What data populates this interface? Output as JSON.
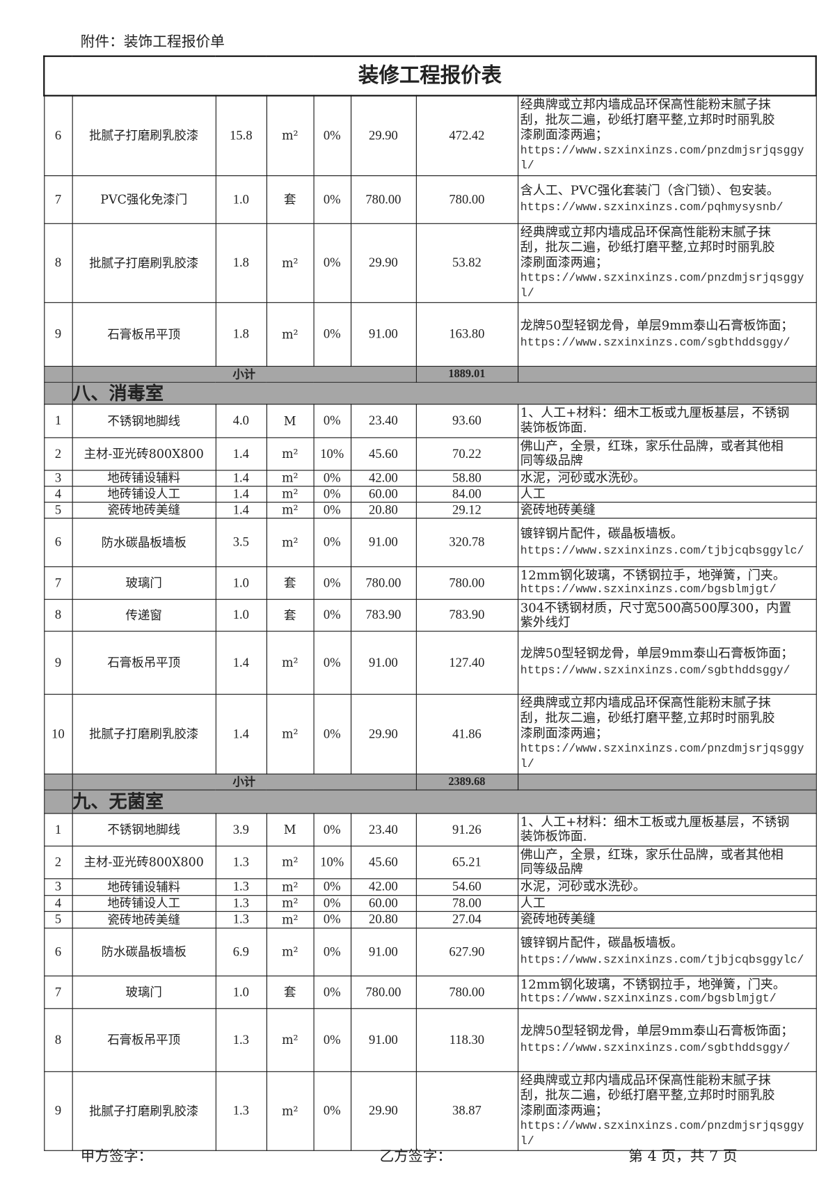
{
  "header": "附件：装饰工程报价单",
  "table_title": "装修工程报价表",
  "subtotal_label": "小计",
  "blocks": [
    {
      "section": "",
      "subtotal": "1889.01",
      "rows": [
        {
          "no": "6",
          "name": "批腻子打磨刷乳胶漆",
          "qty": "15.8",
          "unit": "m²",
          "loss": "0%",
          "price": "29.90",
          "total": "472.42",
          "desc": "经典牌或立邦内墙成品环保高性能粉末腻子抹\n刮，批灰二遍，砂纸打磨平整,立邦时时丽乳胶\n漆刷面漆两遍；",
          "url": "https://www.szxinxinzs.com/pnzdmjsrjqsggyl/"
        },
        {
          "no": "7",
          "name": "PVC强化免漆门",
          "qty": "1.0",
          "unit": "套",
          "loss": "0%",
          "price": "780.00",
          "total": "780.00",
          "desc": "含人工、PVC强化套装门（含门锁）、包安装。",
          "url": "https://www.szxinxinzs.com/pqhmysysnb/"
        },
        {
          "no": "8",
          "name": "批腻子打磨刷乳胶漆",
          "qty": "1.8",
          "unit": "m²",
          "loss": "0%",
          "price": "29.90",
          "total": "53.82",
          "desc": "经典牌或立邦内墙成品环保高性能粉末腻子抹\n刮，批灰二遍，砂纸打磨平整,立邦时时丽乳胶\n漆刷面漆两遍；",
          "url": "https://www.szxinxinzs.com/pnzdmjsrjqsggyl/"
        },
        {
          "no": "9",
          "name": "石膏板吊平顶",
          "qty": "1.8",
          "unit": "m²",
          "loss": "0%",
          "price": "91.00",
          "total": "163.80",
          "desc": "龙牌50型轻钢龙骨，单层9mm泰山石膏板饰面；",
          "url": "https://www.szxinxinzs.com/sgbthddsggy/"
        }
      ]
    },
    {
      "section": "八、消毒室",
      "subtotal": "2389.68",
      "rows": [
        {
          "no": "1",
          "name": "不锈钢地脚线",
          "qty": "4.0",
          "unit": "M",
          "loss": "0%",
          "price": "23.40",
          "total": "93.60",
          "desc": "1、人工+材料：细木工板或九厘板基层，不锈钢\n装饰板饰面.",
          "url": ""
        },
        {
          "no": "2",
          "name": "主材-亚光砖800X800",
          "qty": "1.4",
          "unit": "m²",
          "loss": "10%",
          "price": "45.60",
          "total": "70.22",
          "desc": "佛山产，全景，红珠，家乐仕品牌，或者其他相\n同等级品牌",
          "url": ""
        },
        {
          "no": "3",
          "name": "地砖铺设辅料",
          "qty": "1.4",
          "unit": "m²",
          "loss": "0%",
          "price": "42.00",
          "total": "58.80",
          "desc": "水泥，河砂或水洗砂。",
          "url": ""
        },
        {
          "no": "4",
          "name": "地砖铺设人工",
          "qty": "1.4",
          "unit": "m²",
          "loss": "0%",
          "price": "60.00",
          "total": "84.00",
          "desc": "人工",
          "url": ""
        },
        {
          "no": "5",
          "name": "瓷砖地砖美缝",
          "qty": "1.4",
          "unit": "m²",
          "loss": "0%",
          "price": "20.80",
          "total": "29.12",
          "desc": "瓷砖地砖美缝",
          "url": ""
        },
        {
          "no": "6",
          "name": "防水碳晶板墙板",
          "qty": "3.5",
          "unit": "m²",
          "loss": "0%",
          "price": "91.00",
          "total": "320.78",
          "desc": "镀锌钢片配件，碳晶板墙板。",
          "url": "https://www.szxinxinzs.com/tjbjcqbsggylc/"
        },
        {
          "no": "7",
          "name": "玻璃门",
          "qty": "1.0",
          "unit": "套",
          "loss": "0%",
          "price": "780.00",
          "total": "780.00",
          "desc": "12mm钢化玻璃，不锈钢拉手，地弹簧，门夹。",
          "url": "https://www.szxinxinzs.com/bgsblmjgt/"
        },
        {
          "no": "8",
          "name": "传递窗",
          "qty": "1.0",
          "unit": "套",
          "loss": "0%",
          "price": "783.90",
          "total": "783.90",
          "desc": "304不锈钢材质，尺寸宽500高500厚300，内置\n紫外线灯",
          "url": ""
        },
        {
          "no": "9",
          "name": "石膏板吊平顶",
          "qty": "1.4",
          "unit": "m²",
          "loss": "0%",
          "price": "91.00",
          "total": "127.40",
          "desc": "龙牌50型轻钢龙骨，单层9mm泰山石膏板饰面；",
          "url": "https://www.szxinxinzs.com/sgbthddsggy/"
        },
        {
          "no": "10",
          "name": "批腻子打磨刷乳胶漆",
          "qty": "1.4",
          "unit": "m²",
          "loss": "0%",
          "price": "29.90",
          "total": "41.86",
          "desc": "经典牌或立邦内墙成品环保高性能粉末腻子抹\n刮，批灰二遍，砂纸打磨平整,立邦时时丽乳胶\n漆刷面漆两遍；",
          "url": "https://www.szxinxinzs.com/pnzdmjsrjqsggyl/"
        }
      ]
    },
    {
      "section": "九、无菌室",
      "subtotal": "",
      "rows": [
        {
          "no": "1",
          "name": "不锈钢地脚线",
          "qty": "3.9",
          "unit": "M",
          "loss": "0%",
          "price": "23.40",
          "total": "91.26",
          "desc": "1、人工+材料：细木工板或九厘板基层，不锈钢\n装饰板饰面.",
          "url": ""
        },
        {
          "no": "2",
          "name": "主材-亚光砖800X800",
          "qty": "1.3",
          "unit": "m²",
          "loss": "10%",
          "price": "45.60",
          "total": "65.21",
          "desc": "佛山产，全景，红珠，家乐仕品牌，或者其他相\n同等级品牌",
          "url": ""
        },
        {
          "no": "3",
          "name": "地砖铺设辅料",
          "qty": "1.3",
          "unit": "m²",
          "loss": "0%",
          "price": "42.00",
          "total": "54.60",
          "desc": "水泥，河砂或水洗砂。",
          "url": ""
        },
        {
          "no": "4",
          "name": "地砖铺设人工",
          "qty": "1.3",
          "unit": "m²",
          "loss": "0%",
          "price": "60.00",
          "total": "78.00",
          "desc": "人工",
          "url": ""
        },
        {
          "no": "5",
          "name": "瓷砖地砖美缝",
          "qty": "1.3",
          "unit": "m²",
          "loss": "0%",
          "price": "20.80",
          "total": "27.04",
          "desc": "瓷砖地砖美缝",
          "url": ""
        },
        {
          "no": "6",
          "name": "防水碳晶板墙板",
          "qty": "6.9",
          "unit": "m²",
          "loss": "0%",
          "price": "91.00",
          "total": "627.90",
          "desc": "镀锌钢片配件，碳晶板墙板。",
          "url": "https://www.szxinxinzs.com/tjbjcqbsggylc/"
        },
        {
          "no": "7",
          "name": "玻璃门",
          "qty": "1.0",
          "unit": "套",
          "loss": "0%",
          "price": "780.00",
          "total": "780.00",
          "desc": "12mm钢化玻璃，不锈钢拉手，地弹簧，门夹。",
          "url": "https://www.szxinxinzs.com/bgsblmjgt/"
        },
        {
          "no": "8",
          "name": "石膏板吊平顶",
          "qty": "1.3",
          "unit": "m²",
          "loss": "0%",
          "price": "91.00",
          "total": "118.30",
          "desc": "龙牌50型轻钢龙骨，单层9mm泰山石膏板饰面；",
          "url": "https://www.szxinxinzs.com/sgbthddsggy/"
        },
        {
          "no": "9",
          "name": "批腻子打磨刷乳胶漆",
          "qty": "1.3",
          "unit": "m²",
          "loss": "0%",
          "price": "29.90",
          "total": "38.87",
          "desc": "经典牌或立邦内墙成品环保高性能粉末腻子抹\n刮，批灰二遍，砂纸打磨平整,立邦时时丽乳胶\n漆刷面漆两遍；",
          "url": "https://www.szxinxinzs.com/pnzdmjsrjqsggyl/"
        }
      ]
    }
  ],
  "footer": {
    "party_a": "甲方签字：",
    "party_b": "乙方签字：",
    "page": "第 4 页，共 7 页"
  },
  "colors": {
    "section_bg": "#a6a6a6",
    "border": "#111111"
  }
}
